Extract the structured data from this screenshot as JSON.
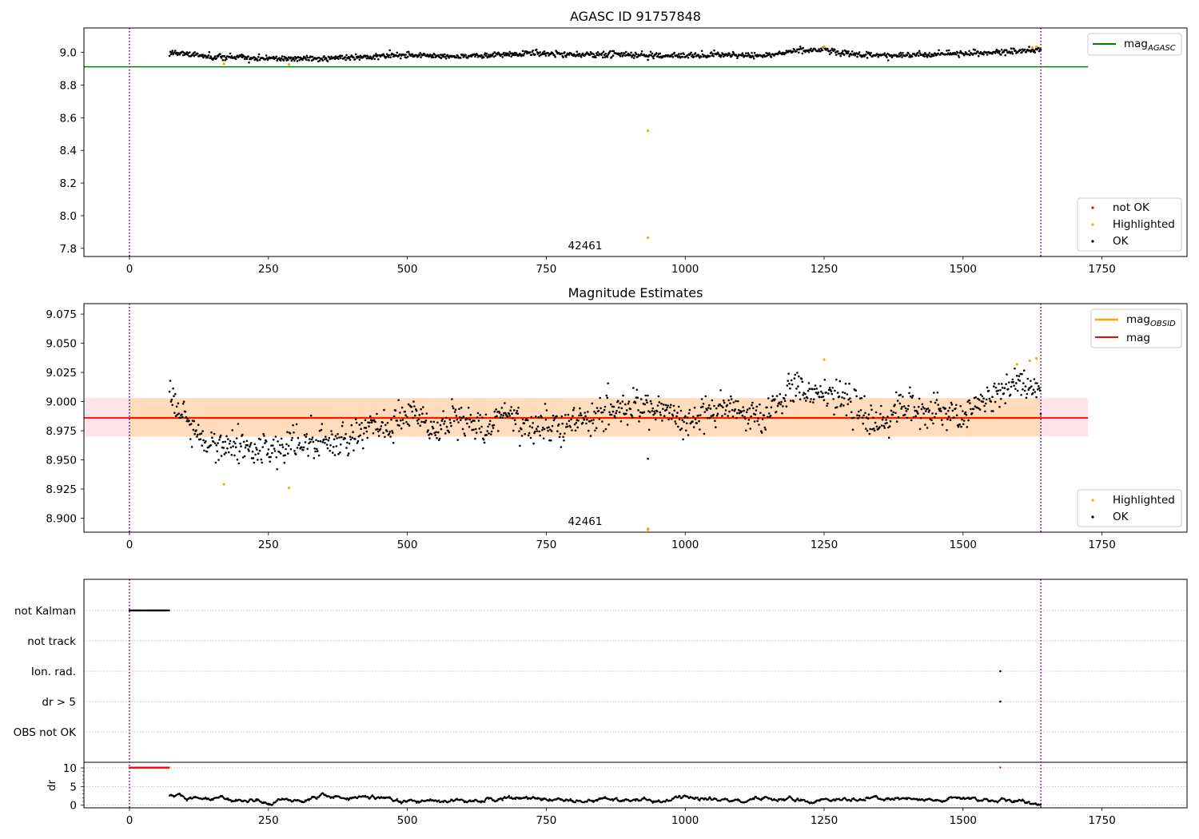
{
  "colors": {
    "ok": "#000000",
    "not_ok": "#ff0000",
    "highlighted": "#ffa500",
    "mag_agasc": "#008000",
    "mag_obsid": "#ffa500",
    "mag": "#ff0000",
    "vline": "#800080",
    "band_outer": "#ffc0cb",
    "band_inner": "#ffdab9",
    "grid": "#b0b0b0"
  },
  "panel1": {
    "title": "AGASC ID 91757848",
    "obsid_label": "42461",
    "legend_top": {
      "label": "mag",
      "sub": "AGASC"
    },
    "legend_bottom": [
      {
        "label": "not OK",
        "color": "#ff0000"
      },
      {
        "label": "Highlighted",
        "color": "#ffa500"
      },
      {
        "label": "OK",
        "color": "#000000"
      }
    ]
  },
  "panel2": {
    "title": "Magnitude Estimates",
    "obsid_label": "42461",
    "legend_top": [
      {
        "label": "mag",
        "sub": "OBSID",
        "color": "#ffa500"
      },
      {
        "label": "mag",
        "sub": "",
        "color": "#ff0000"
      }
    ],
    "legend_bottom": [
      {
        "label": "Highlighted",
        "color": "#ffa500"
      },
      {
        "label": "OK",
        "color": "#000000"
      }
    ]
  },
  "panel3": {
    "flag_labels": [
      "not Kalman",
      "not track",
      "Ion. rad.",
      "dr > 5",
      "OBS not OK"
    ],
    "dr_ylabel": "dr"
  },
  "chart_data": [
    {
      "type": "scatter",
      "title": "AGASC ID 91757848",
      "xlim": [
        -82,
        1903
      ],
      "ylim": [
        7.75,
        9.15
      ],
      "x_ticks": [
        0,
        250,
        500,
        750,
        1000,
        1250,
        1500,
        1750
      ],
      "y_ticks": [
        7.8,
        8.0,
        8.2,
        8.4,
        8.6,
        8.8,
        9.0
      ],
      "y_tick_labels": [
        "7.8",
        "8.0",
        "8.2",
        "8.4",
        "8.6",
        "8.8",
        "9.0"
      ],
      "vlines": [
        0,
        1640
      ],
      "hline": {
        "name": "mag_AGASC",
        "y": 8.912,
        "x_range": [
          -82,
          1725
        ]
      },
      "annotation": {
        "text": "42461",
        "x": 820
      },
      "highlighted_points": [
        [
          170,
          8.93
        ],
        [
          287,
          8.926
        ],
        [
          933,
          8.52
        ],
        [
          933,
          7.865
        ],
        [
          1250,
          9.035
        ],
        [
          1625,
          9.03
        ],
        [
          1632,
          9.035
        ]
      ],
      "ok_series": {
        "x_range": [
          72,
          1640
        ],
        "segments": [
          [
            72,
            9.0
          ],
          [
            150,
            8.975
          ],
          [
            250,
            8.963
          ],
          [
            350,
            8.965
          ],
          [
            430,
            8.973
          ],
          [
            500,
            8.985
          ],
          [
            570,
            8.975
          ],
          [
            650,
            8.985
          ],
          [
            720,
            8.993
          ],
          [
            800,
            8.985
          ],
          [
            880,
            8.99
          ],
          [
            960,
            8.98
          ],
          [
            1050,
            8.985
          ],
          [
            1140,
            8.98
          ],
          [
            1200,
            9.01
          ],
          [
            1250,
            9.015
          ],
          [
            1300,
            8.99
          ],
          [
            1370,
            8.98
          ],
          [
            1450,
            8.99
          ],
          [
            1550,
            9.0
          ],
          [
            1640,
            9.015
          ]
        ],
        "spread": 0.009
      },
      "legend": [
        "mag_AGASC",
        "not OK",
        "Highlighted",
        "OK"
      ]
    },
    {
      "type": "scatter",
      "title": "Magnitude Estimates",
      "xlim": [
        -82,
        1903
      ],
      "ylim": [
        8.888,
        9.084
      ],
      "x_ticks": [
        0,
        250,
        500,
        750,
        1000,
        1250,
        1500,
        1750
      ],
      "y_ticks": [
        8.9,
        8.925,
        8.95,
        8.975,
        9.0,
        9.025,
        9.05,
        9.075
      ],
      "y_tick_labels": [
        "8.900",
        "8.925",
        "8.950",
        "8.975",
        "9.000",
        "9.025",
        "9.050",
        "9.075"
      ],
      "vlines": [
        0,
        1640
      ],
      "mag": {
        "y": 8.986,
        "x_range": [
          -82,
          1725
        ]
      },
      "band_outer": {
        "y_range": [
          8.97,
          9.003
        ],
        "x_range": [
          -82,
          1725
        ]
      },
      "band_inner": {
        "y_range": [
          8.97,
          9.003
        ],
        "x_range": [
          0,
          1640
        ]
      },
      "mag_obsid": {
        "y": 8.986,
        "x_range": [
          0,
          1640
        ]
      },
      "annotation": {
        "text": "42461",
        "x": 820
      },
      "highlighted_points": [
        [
          170,
          8.929
        ],
        [
          287,
          8.926
        ],
        [
          933,
          8.89
        ],
        [
          933,
          8.891
        ],
        [
          1250,
          9.036
        ],
        [
          1597,
          9.032
        ],
        [
          1620,
          9.035
        ],
        [
          1632,
          9.037
        ]
      ],
      "outlier_points": [
        [
          933,
          8.951
        ]
      ],
      "ok_series": {
        "x_range": [
          72,
          1640
        ],
        "segments": [
          [
            72,
            9.0
          ],
          [
            110,
            8.98
          ],
          [
            150,
            8.975
          ],
          [
            200,
            8.963
          ],
          [
            250,
            8.958
          ],
          [
            300,
            8.968
          ],
          [
            360,
            8.96
          ],
          [
            400,
            8.962
          ],
          [
            450,
            8.975
          ],
          [
            500,
            8.99
          ],
          [
            550,
            8.982
          ],
          [
            600,
            8.978
          ],
          [
            650,
            8.985
          ],
          [
            700,
            8.988
          ],
          [
            760,
            8.975
          ],
          [
            800,
            8.985
          ],
          [
            850,
            8.993
          ],
          [
            900,
            8.995
          ],
          [
            950,
            8.99
          ],
          [
            1000,
            8.978
          ],
          [
            1050,
            8.99
          ],
          [
            1100,
            8.985
          ],
          [
            1140,
            8.978
          ],
          [
            1180,
            9.005
          ],
          [
            1220,
            9.01
          ],
          [
            1260,
            9.01
          ],
          [
            1300,
            8.99
          ],
          [
            1350,
            8.98
          ],
          [
            1390,
            9.0
          ],
          [
            1450,
            8.988
          ],
          [
            1500,
            8.985
          ],
          [
            1550,
            9.005
          ],
          [
            1600,
            9.01
          ],
          [
            1640,
            9.015
          ]
        ],
        "spread": 0.012
      },
      "legend": [
        "mag_OBSID",
        "mag",
        "Highlighted",
        "OK"
      ]
    },
    {
      "type": "scatter",
      "title": "",
      "xlim": [
        -82,
        1903
      ],
      "flags": {
        "categories": [
          "not Kalman",
          "not track",
          "Ion. rad.",
          "dr > 5",
          "OBS not OK"
        ],
        "not Kalman": {
          "x_range": [
            0,
            72
          ]
        },
        "not track": {
          "x_range": null
        },
        "Ion. rad.": {
          "points": [
            1567
          ]
        },
        "dr > 5": {
          "points": [
            1567
          ]
        },
        "OBS not OK": {
          "x_range": null
        }
      },
      "dr": {
        "ylim": [
          -0.7,
          11.5
        ],
        "y_ticks": [
          0,
          5,
          10
        ],
        "clipped_value": 10,
        "clipped_x_range": [
          0,
          72
        ],
        "clipped_extra": [
          1567
        ],
        "x_range": [
          72,
          1640
        ],
        "segments": [
          [
            72,
            2.2
          ],
          [
            150,
            1.8
          ],
          [
            250,
            1.0
          ],
          [
            300,
            1.6
          ],
          [
            350,
            2.2
          ],
          [
            400,
            1.8
          ],
          [
            430,
            2.8
          ],
          [
            500,
            0.9
          ],
          [
            600,
            1.2
          ],
          [
            700,
            1.6
          ],
          [
            800,
            1.2
          ],
          [
            850,
            1.5
          ],
          [
            960,
            1.0
          ],
          [
            1000,
            2.0
          ],
          [
            1100,
            1.0
          ],
          [
            1140,
            1.8
          ],
          [
            1300,
            1.2
          ],
          [
            1350,
            1.8
          ],
          [
            1450,
            1.0
          ],
          [
            1500,
            2.0
          ],
          [
            1600,
            0.8
          ],
          [
            1640,
            0.5
          ]
        ]
      }
    }
  ]
}
